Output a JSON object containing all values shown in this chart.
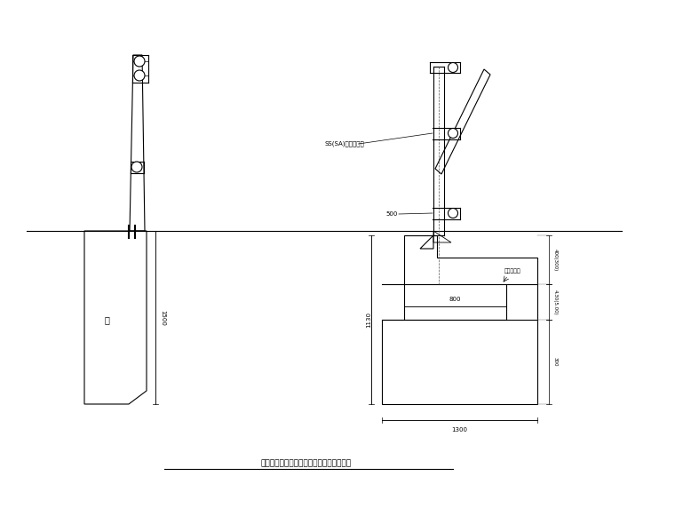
{
  "title": "挡墙上为人行道栏杆和防撞栏杆结构示意图",
  "bg_color": "#ffffff",
  "line_color": "#000000",
  "label_1500": "1500",
  "label_1130": "1130",
  "label_1300": "1300",
  "label_800": "800",
  "label_300": "300",
  "label_500": "500",
  "label_400_300": "400(300)",
  "label_430_500": "4.30(5.00)",
  "label_SS": "SS(SA)级路基护栏",
  "label_road": "车行道标高",
  "label_wall": "墙"
}
